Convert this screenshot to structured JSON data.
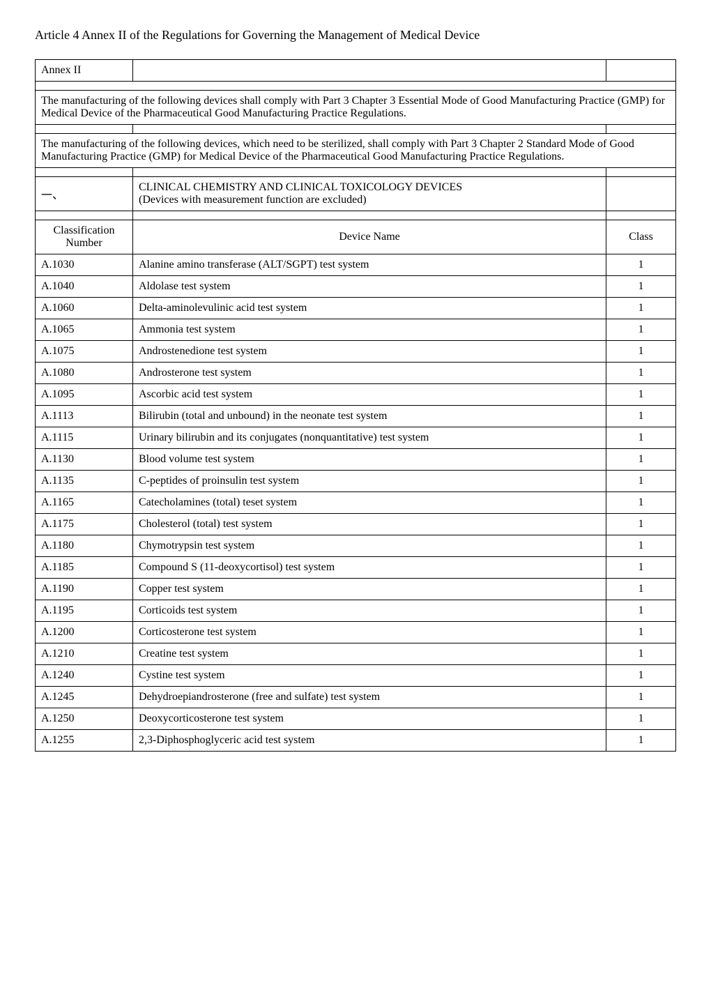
{
  "page_title": "Article 4 Annex II of the Regulations for Governing the Management of Medical Device",
  "annex_label": "Annex II",
  "paragraph1": "The manufacturing of the following devices shall comply with Part 3 Chapter 3 Essential Mode of Good Manufacturing Practice (GMP) for Medical Device of the Pharmaceutical Good Manufacturing Practice Regulations.",
  "paragraph2": "The manufacturing of the following devices, which need to be sterilized, shall comply with Part 3 Chapter 2 Standard Mode of Good Manufacturing Practice (GMP) for Medical Device of the Pharmaceutical Good Manufacturing Practice Regulations.",
  "section_number": "一、",
  "section_heading_line1": "CLINICAL CHEMISTRY AND CLINICAL TOXICOLOGY DEVICES",
  "section_heading_line2": "(Devices with measurement function are excluded)",
  "table_header": {
    "col1": "Classification Number",
    "col2": "Device Name",
    "col3": "Class"
  },
  "rows": [
    {
      "num": "A.1030",
      "name": "Alanine amino transferase (ALT/SGPT) test system",
      "class": "1"
    },
    {
      "num": "A.1040",
      "name": "Aldolase test system",
      "class": "1"
    },
    {
      "num": "A.1060",
      "name": "Delta-aminolevulinic acid test system",
      "class": "1"
    },
    {
      "num": "A.1065",
      "name": "Ammonia test system",
      "class": "1"
    },
    {
      "num": "A.1075",
      "name": "Androstenedione test system",
      "class": "1"
    },
    {
      "num": "A.1080",
      "name": "Androsterone test system",
      "class": "1"
    },
    {
      "num": "A.1095",
      "name": "Ascorbic acid test system",
      "class": "1"
    },
    {
      "num": "A.1113",
      "name": "Bilirubin (total and unbound) in the neonate test system",
      "class": "1"
    },
    {
      "num": "A.1115",
      "name": "Urinary bilirubin and its conjugates (nonquantitative) test system",
      "class": "1"
    },
    {
      "num": "A.1130",
      "name": "Blood volume test system",
      "class": "1"
    },
    {
      "num": "A.1135",
      "name": "C-peptides of proinsulin test system",
      "class": "1"
    },
    {
      "num": "A.1165",
      "name": "Catecholamines (total) teset system",
      "class": "1"
    },
    {
      "num": "A.1175",
      "name": "Cholesterol (total) test system",
      "class": "1"
    },
    {
      "num": "A.1180",
      "name": "Chymotrypsin test system",
      "class": "1"
    },
    {
      "num": "A.1185",
      "name": "Compound S (11-deoxycortisol) test system",
      "class": "1"
    },
    {
      "num": "A.1190",
      "name": "Copper test system",
      "class": "1"
    },
    {
      "num": "A.1195",
      "name": "Corticoids test system",
      "class": "1"
    },
    {
      "num": "A.1200",
      "name": "Corticosterone test system",
      "class": "1"
    },
    {
      "num": "A.1210",
      "name": "Creatine test system",
      "class": "1"
    },
    {
      "num": "A.1240",
      "name": "Cystine test system",
      "class": "1"
    },
    {
      "num": "A.1245",
      "name": "Dehydroepiandrosterone (free and sulfate) test system",
      "class": "1"
    },
    {
      "num": "A.1250",
      "name": "Deoxycorticosterone test system",
      "class": "1"
    },
    {
      "num": "A.1255",
      "name": "2,3-Diphosphoglyceric acid test system",
      "class": "1"
    }
  ]
}
